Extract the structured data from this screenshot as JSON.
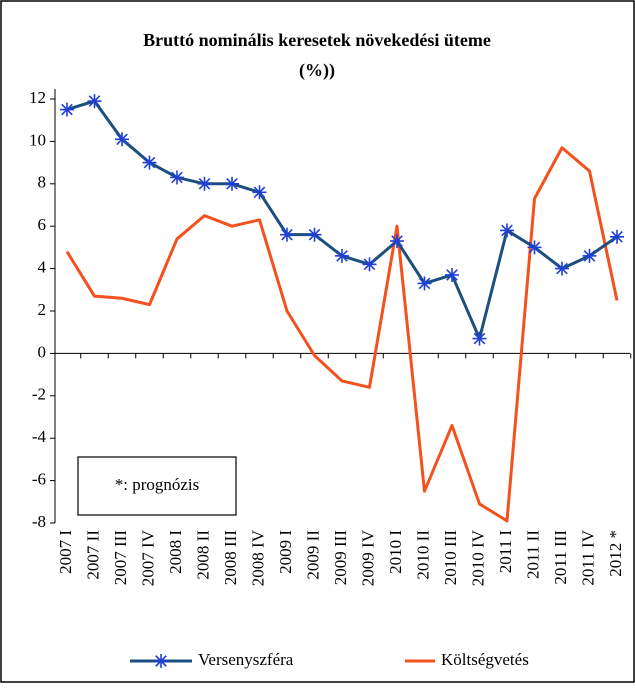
{
  "chart_data": {
    "type": "line",
    "title": "Bruttó nominális keresetek növekedési üteme",
    "subtitle": "(%))",
    "annotation": "*: prognózis",
    "categories": [
      "2007 I",
      "2007 II",
      "2007 III",
      "2007 IV",
      "2008 I",
      "2008 II",
      "2008 III",
      "2008 IV",
      "2009 I",
      "2009 II",
      "2009 III",
      "2009 IV",
      "2010 I",
      "2010 II",
      "2010 III",
      "2010 IV",
      "2011 I",
      "2011 II",
      "2011 III",
      "2011 IV",
      "2012 *"
    ],
    "series": [
      {
        "name": "Versenyszféra",
        "color": "#1b4f7d",
        "marker": "asterisk",
        "values": [
          11.5,
          11.9,
          10.1,
          9.0,
          8.3,
          8.0,
          8.0,
          7.6,
          5.6,
          5.6,
          4.6,
          4.2,
          5.3,
          3.3,
          3.7,
          0.7,
          5.8,
          5.0,
          4.0,
          4.6,
          5.5
        ]
      },
      {
        "name": "Költségvetés",
        "color": "#f4511e",
        "values": [
          4.8,
          2.7,
          2.6,
          2.3,
          5.4,
          6.5,
          6.0,
          6.3,
          2.0,
          -0.1,
          -1.3,
          -1.6,
          6.0,
          -6.5,
          -3.4,
          -7.1,
          -7.9,
          7.3,
          9.7,
          8.6,
          2.5
        ]
      }
    ],
    "ylim": [
      -8,
      12
    ],
    "yticks": [
      -8,
      -6,
      -4,
      -2,
      0,
      2,
      4,
      6,
      8,
      10,
      12
    ],
    "legend": "bottom"
  }
}
